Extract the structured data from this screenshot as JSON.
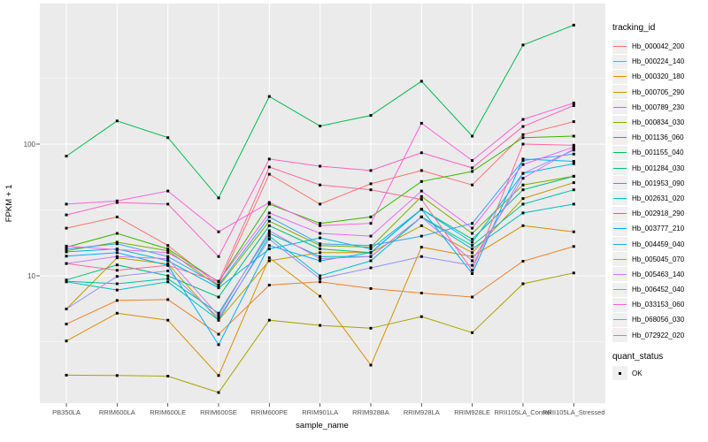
{
  "chart_data": {
    "type": "line",
    "title": "",
    "xlabel": "sample_name",
    "ylabel": "FPKM + 1",
    "y_scale": "log10",
    "ylim": [
      1.08,
      1150
    ],
    "y_major_ticks": [
      10,
      100
    ],
    "y_tick_labels": [
      "10",
      "100"
    ],
    "y_minor_ticks": [
      3.162,
      31.62,
      316.2
    ],
    "grid": "on",
    "panel_bg": "#ebebeb",
    "grid_color": "#ffffff",
    "point_marker": "black-square",
    "point_color": "#000000",
    "legend_position": "right",
    "legend_title": "tracking_id",
    "quant_status": {
      "title": "quant_status",
      "items": [
        {
          "label": "OK",
          "marker": "black-square"
        }
      ]
    },
    "categories": [
      "PB350LA",
      "RRIM600LA",
      "RRIM600LE",
      "RRIM600SE",
      "RRIM600PE",
      "RRIM901LA",
      "RRIM928BA",
      "RRIM928LA",
      "RRIM928LE",
      "RRII105LA_Control",
      "RRII105LA_Stressed"
    ],
    "series": [
      {
        "name": "Hb_000042_200",
        "color": "#F8766D",
        "values": [
          23,
          28,
          17,
          8.5,
          59,
          35,
          50,
          63,
          49,
          118,
          148
        ]
      },
      {
        "name": "Hb_000224_140",
        "color": "#EA8331",
        "values": [
          4.3,
          6.5,
          6.6,
          3.6,
          8.5,
          9,
          8,
          7.4,
          6.9,
          12.9,
          16.7
        ]
      },
      {
        "name": "Hb_000320_180",
        "color": "#D89000",
        "values": [
          3.2,
          5.2,
          4.6,
          1.75,
          13.7,
          7,
          2.1,
          16.5,
          14,
          24,
          21.6
        ]
      },
      {
        "name": "Hb_000705_290",
        "color": "#C09B00",
        "values": [
          5.6,
          13.7,
          12.3,
          4.6,
          13,
          15,
          15,
          24,
          15,
          38.6,
          51
        ]
      },
      {
        "name": "Hb_000789_230",
        "color": "#A3A500",
        "values": [
          1.76,
          1.75,
          1.73,
          1.3,
          4.6,
          4.2,
          4.0,
          4.9,
          3.7,
          8.7,
          10.5
        ]
      },
      {
        "name": "Hb_000834_030",
        "color": "#7CAE00",
        "values": [
          15.5,
          18,
          15.5,
          8.3,
          26,
          17,
          16.5,
          40,
          21,
          49,
          57
        ]
      },
      {
        "name": "Hb_001136_060",
        "color": "#39B600",
        "values": [
          16.5,
          21,
          16,
          9.0,
          35,
          25,
          28,
          52,
          62,
          112,
          115
        ]
      },
      {
        "name": "Hb_001155_040",
        "color": "#00BB4E",
        "values": [
          81,
          150,
          112,
          39,
          230,
          137,
          165,
          300,
          115,
          565,
          800
        ]
      },
      {
        "name": "Hb_001284_030",
        "color": "#00BF7D",
        "values": [
          9.3,
          12.1,
          10,
          6.9,
          24,
          16,
          15,
          32,
          19,
          45,
          57
        ]
      },
      {
        "name": "Hb_001953_090",
        "color": "#00C1A3",
        "values": [
          9.1,
          8.7,
          9.5,
          5.2,
          21,
          14,
          14,
          28,
          17,
          35,
          45
        ]
      },
      {
        "name": "Hb_002631_020",
        "color": "#00BFC4",
        "values": [
          9.0,
          7.8,
          9.0,
          4.6,
          20,
          10,
          13,
          28,
          16,
          30,
          35
        ]
      },
      {
        "name": "Hb_002918_290",
        "color": "#00BAE0",
        "values": [
          15.2,
          16,
          13,
          8.1,
          16,
          19.4,
          16,
          32,
          18,
          60,
          71
        ]
      },
      {
        "name": "Hb_003777_210",
        "color": "#00B0F6",
        "values": [
          14.1,
          15,
          12,
          3.0,
          17,
          13,
          15,
          32,
          10.4,
          77,
          74
        ]
      },
      {
        "name": "Hb_004459_040",
        "color": "#35A2FF",
        "values": [
          16.0,
          17.5,
          14,
          8.5,
          28,
          17.5,
          17,
          20,
          25,
          75,
          84
        ]
      },
      {
        "name": "Hb_005045_070",
        "color": "#9590FF",
        "values": [
          5.6,
          9.9,
          10.9,
          4.8,
          19,
          9.5,
          11.5,
          14,
          12,
          60,
          90
        ]
      },
      {
        "name": "Hb_005463_140",
        "color": "#C77CFF",
        "values": [
          12.4,
          14,
          13.5,
          5.0,
          22,
          13.5,
          14,
          28,
          13,
          55,
          92
        ]
      },
      {
        "name": "Hb_006452_040",
        "color": "#E76BF3",
        "values": [
          16.8,
          15.8,
          15,
          9.1,
          30,
          21,
          20,
          44,
          23,
          70,
          95
        ]
      },
      {
        "name": "Hb_033153_060",
        "color": "#FA62DB",
        "values": [
          35,
          37,
          44,
          21.6,
          36,
          24,
          25,
          144,
          75,
          154,
          205
        ]
      },
      {
        "name": "Hb_068056_030",
        "color": "#FF62BC",
        "values": [
          29,
          36,
          35,
          14,
          77,
          68,
          63,
          86,
          66,
          136,
          196
        ]
      },
      {
        "name": "Hb_072922_020",
        "color": "#FF6A98",
        "values": [
          12.4,
          11,
          12,
          9.0,
          67,
          49,
          45,
          38,
          11,
          100,
          98
        ]
      }
    ]
  }
}
